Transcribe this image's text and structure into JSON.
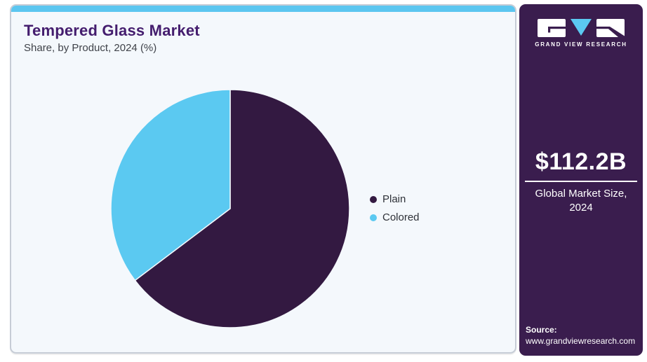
{
  "header": {
    "title": "Tempered Glass Market",
    "subtitle": "Share, by Product, 2024 (%)"
  },
  "chart_data": {
    "type": "pie",
    "title": "Tempered Glass Market Share, by Product, 2024 (%)",
    "labels": [
      "Plain",
      "Colored"
    ],
    "values": [
      64.7,
      35.3
    ],
    "colors": [
      "#331941",
      "#5bc9f1"
    ],
    "start_angle": "12 o'clock",
    "direction": "clockwise",
    "legend_position": "right",
    "slice_separator_color": "#f4f8fc"
  },
  "sidebar": {
    "logo_text": "GRAND VIEW RESEARCH",
    "market_size": {
      "value": "$112.2B",
      "caption_line1": "Global Market Size,",
      "caption_line2": "2024"
    },
    "source": {
      "label": "Source:",
      "url": "www.grandviewresearch.com"
    }
  },
  "colors": {
    "accent_cyan": "#5bc6f0",
    "pie_plain_purple": "#331941",
    "pie_colored_blue": "#5bc9f1",
    "sidebar_purple": "#3a1d4e",
    "title_purple": "#441d6e",
    "card_background": "#f4f8fc",
    "card_border": "#c6ccd6"
  }
}
